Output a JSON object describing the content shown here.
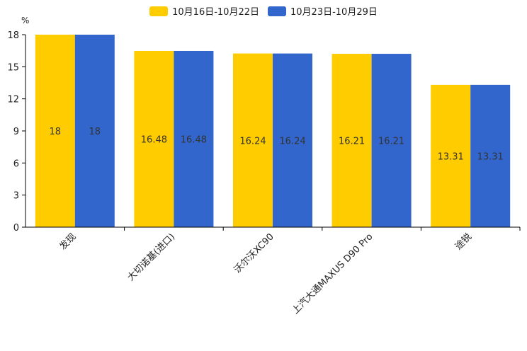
{
  "chart_data": {
    "type": "bar",
    "unit": "%",
    "categories": [
      "发现",
      "大切诺基(进口)",
      "沃尔沃XC90",
      "上汽大通MAXUS D90 Pro",
      "途锐"
    ],
    "series": [
      {
        "name": "10月16日-10月22日",
        "color": "#FFCC00",
        "values": [
          18,
          16.48,
          16.24,
          16.21,
          13.31
        ],
        "labels": [
          "18",
          "16.48",
          "16.24",
          "16.21",
          "13.31"
        ]
      },
      {
        "name": "10月23日-10月29日",
        "color": "#3366CC",
        "values": [
          18,
          16.48,
          16.24,
          16.21,
          13.31
        ],
        "labels": [
          "18",
          "16.48",
          "16.24",
          "16.21",
          "13.31"
        ]
      }
    ],
    "y_ticks": [
      "0",
      "3",
      "6",
      "9",
      "12",
      "15",
      "18"
    ],
    "ylim": [
      0,
      18
    ],
    "legend_position": "top-center",
    "grid": false
  }
}
